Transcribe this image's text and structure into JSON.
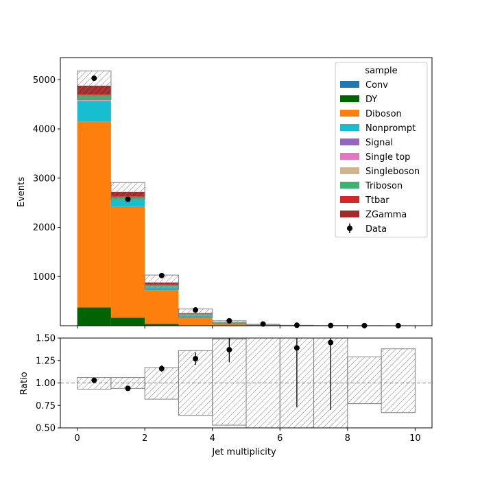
{
  "chart_data": {
    "type": "bar",
    "stacked": true,
    "xlabel": "Jet multiplicity",
    "ylabel": "Events",
    "ratio_ylabel": "Ratio",
    "bin_edges": [
      0,
      1,
      2,
      3,
      4,
      5,
      6,
      7,
      8,
      9,
      10
    ],
    "xlim": [
      -0.5,
      10.5
    ],
    "ylim": [
      0,
      5450
    ],
    "ratio_ylim": [
      0.5,
      1.5
    ],
    "x_ticks": [
      0,
      2,
      4,
      6,
      8,
      10
    ],
    "y_ticks": [
      1000,
      2000,
      3000,
      4000,
      5000
    ],
    "ratio_y_ticks": [
      "0.50",
      "0.75",
      "1.00",
      "1.25",
      "1.50"
    ],
    "legend": {
      "title": "sample",
      "position": "top-right"
    },
    "series": [
      {
        "name": "Conv",
        "color": "#1f77b4",
        "values": [
          0,
          0,
          0,
          0,
          0,
          0,
          0,
          0,
          0,
          0
        ]
      },
      {
        "name": "DY",
        "color": "#006400",
        "values": [
          370,
          160,
          35,
          10,
          3,
          1,
          0,
          0,
          0,
          0
        ]
      },
      {
        "name": "Diboson",
        "color": "#ff7f0e",
        "values": [
          3780,
          2260,
          680,
          160,
          40,
          10,
          3,
          1,
          0,
          0
        ]
      },
      {
        "name": "Nonprompt",
        "color": "#17becf",
        "values": [
          420,
          140,
          70,
          35,
          12,
          3,
          1,
          0,
          0,
          0
        ]
      },
      {
        "name": "Signal",
        "color": "#9467bd",
        "values": [
          0,
          0,
          0,
          0,
          0,
          0,
          0,
          0,
          0,
          0
        ]
      },
      {
        "name": "Single top",
        "color": "#e377c2",
        "values": [
          10,
          5,
          5,
          3,
          1,
          0,
          0,
          0,
          0,
          0
        ]
      },
      {
        "name": "Singleboson",
        "color": "#d2b48c",
        "values": [
          5,
          5,
          2,
          1,
          0,
          0,
          0,
          0,
          0,
          0
        ]
      },
      {
        "name": "Triboson",
        "color": "#3cb371",
        "values": [
          100,
          40,
          30,
          25,
          12,
          5,
          2,
          1,
          0,
          0
        ]
      },
      {
        "name": "Ttbar",
        "color": "#d62728",
        "values": [
          15,
          20,
          25,
          12,
          4,
          1,
          0,
          0,
          0,
          0
        ]
      },
      {
        "name": "ZGamma",
        "color": "#a52a2a",
        "values": [
          180,
          90,
          30,
          10,
          3,
          1,
          0,
          0,
          0,
          0
        ]
      }
    ],
    "uncertainty_band": {
      "up": [
        5180,
        2910,
        1030,
        340,
        100,
        30,
        9,
        4,
        2,
        1
      ],
      "down": [
        4600,
        2560,
        740,
        160,
        40,
        8,
        2,
        0,
        0,
        0
      ]
    },
    "data_points": {
      "name": "Data",
      "x": [
        0.5,
        1.5,
        2.5,
        3.5,
        4.5,
        5.5,
        6.5,
        7.5,
        8.5,
        9.5
      ],
      "y": [
        5030,
        2570,
        1020,
        320,
        100,
        35,
        10,
        5,
        2,
        1
      ]
    },
    "ratio": {
      "x": [
        0.5,
        1.5,
        2.5,
        3.5,
        4.5,
        6.5,
        7.5
      ],
      "y": [
        1.03,
        0.94,
        1.16,
        1.27,
        1.37,
        1.39,
        1.45
      ],
      "err": [
        0.015,
        0.02,
        0.035,
        0.07,
        0.14,
        0.66,
        0.75
      ],
      "band_up": [
        1.06,
        1.06,
        1.17,
        1.36,
        1.49,
        1.5,
        1.5,
        1.5,
        1.29,
        1.38
      ],
      "band_down": [
        0.93,
        0.94,
        0.82,
        0.64,
        0.53,
        0.5,
        0.5,
        0.5,
        0.77,
        0.67
      ]
    }
  }
}
